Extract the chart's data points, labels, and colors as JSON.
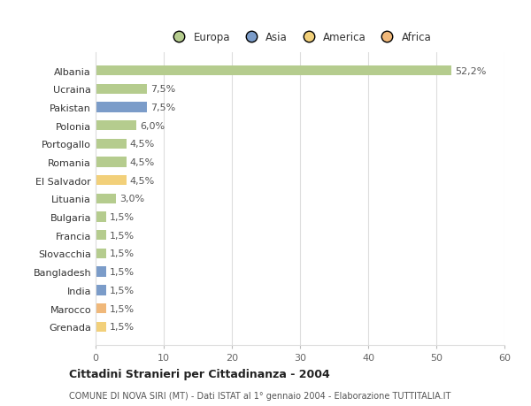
{
  "countries": [
    "Albania",
    "Ucraina",
    "Pakistan",
    "Polonia",
    "Portogallo",
    "Romania",
    "El Salvador",
    "Lituania",
    "Bulgaria",
    "Francia",
    "Slovacchia",
    "Bangladesh",
    "India",
    "Marocco",
    "Grenada"
  ],
  "values": [
    52.2,
    7.5,
    7.5,
    6.0,
    4.5,
    4.5,
    4.5,
    3.0,
    1.5,
    1.5,
    1.5,
    1.5,
    1.5,
    1.5,
    1.5
  ],
  "labels": [
    "52,2%",
    "7,5%",
    "7,5%",
    "6,0%",
    "4,5%",
    "4,5%",
    "4,5%",
    "3,0%",
    "1,5%",
    "1,5%",
    "1,5%",
    "1,5%",
    "1,5%",
    "1,5%",
    "1,5%"
  ],
  "colors": [
    "#b5cc8e",
    "#b5cc8e",
    "#7b9cc9",
    "#b5cc8e",
    "#b5cc8e",
    "#b5cc8e",
    "#f2d07a",
    "#b5cc8e",
    "#b5cc8e",
    "#b5cc8e",
    "#b5cc8e",
    "#7b9cc9",
    "#7b9cc9",
    "#f0b87a",
    "#f2d07a"
  ],
  "legend_labels": [
    "Europa",
    "Asia",
    "America",
    "Africa"
  ],
  "legend_colors": [
    "#b5cc8e",
    "#7b9cc9",
    "#f2d07a",
    "#f0b87a"
  ],
  "title": "Cittadini Stranieri per Cittadinanza - 2004",
  "subtitle": "COMUNE DI NOVA SIRI (MT) - Dati ISTAT al 1° gennaio 2004 - Elaborazione TUTTITALIA.IT",
  "xlim": [
    0,
    60
  ],
  "xticks": [
    0,
    10,
    20,
    30,
    40,
    50,
    60
  ],
  "background_color": "#ffffff",
  "grid_color": "#dddddd",
  "bar_height": 0.55
}
